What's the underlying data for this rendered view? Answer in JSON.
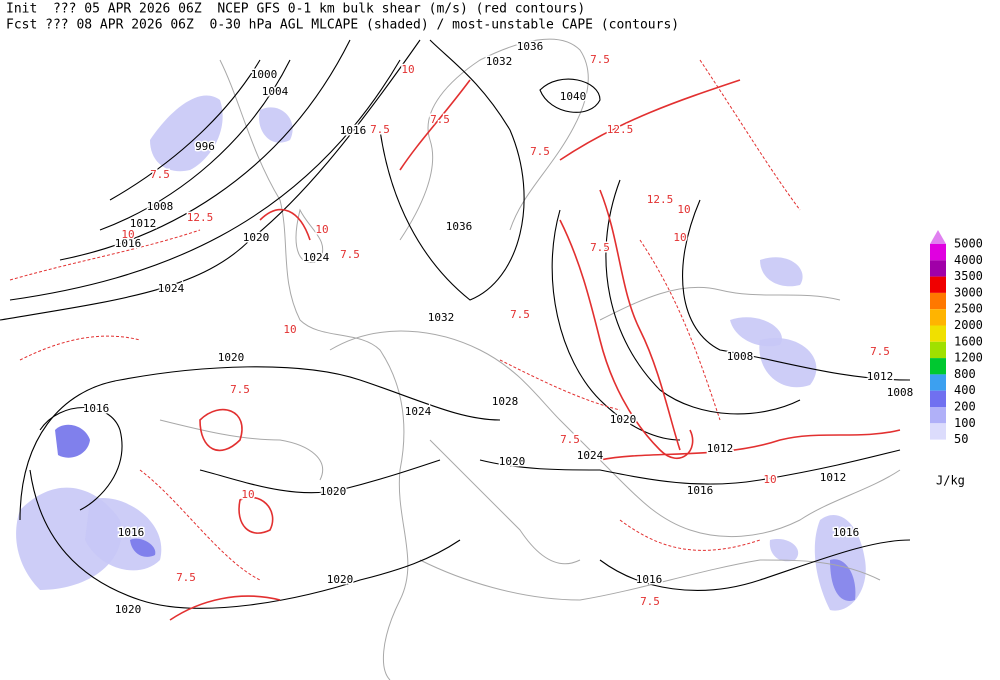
{
  "header": {
    "line1": "Init  ??? 05 APR 2026 06Z  NCEP GFS 0-1 km bulk shear (m/s) (red contours)",
    "line2": "Fcst ??? 08 APR 2026 06Z  0-30 hPa AGL MLCAPE (shaded) / most-unstable CAPE (contours)"
  },
  "isobar_labels": [
    "1000",
    "1004",
    "996",
    "1008",
    "1012",
    "1016",
    "1020",
    "1024",
    "1016",
    "1024",
    "1032",
    "1036",
    "1040",
    "1032",
    "1036",
    "1008",
    "1012",
    "1012",
    "1012",
    "1016",
    "1020",
    "1024",
    "1028",
    "1020",
    "1024",
    "1016",
    "1016",
    "1020",
    "1020",
    "1020",
    "1020",
    "1016",
    "1016",
    "1008"
  ],
  "shear_labels": [
    "7.5",
    "10",
    "12.5",
    "7.5",
    "10",
    "7.5",
    "12.5",
    "10",
    "7.5",
    "10",
    "7.5",
    "12.5",
    "7.5",
    "10",
    "7.5",
    "10",
    "7.5",
    "7.5",
    "10",
    "7.5",
    "7.5",
    "10",
    "7.5",
    "7.5"
  ],
  "legend": {
    "levels": [
      {
        "value": 5000,
        "color": "#e080f0"
      },
      {
        "value": 4000,
        "color": "#e000e0"
      },
      {
        "value": 3500,
        "color": "#a000a8"
      },
      {
        "value": 3000,
        "color": "#f00000"
      },
      {
        "value": 2500,
        "color": "#ff7800"
      },
      {
        "value": 2000,
        "color": "#ffb400"
      },
      {
        "value": 1600,
        "color": "#f0e000"
      },
      {
        "value": 1200,
        "color": "#a0e000"
      },
      {
        "value": 800,
        "color": "#00c830"
      },
      {
        "value": 400,
        "color": "#3ca0f0"
      },
      {
        "value": 200,
        "color": "#7070f0"
      },
      {
        "value": 100,
        "color": "#b0b0f8"
      },
      {
        "value": 50,
        "color": "#dcdcfc"
      }
    ],
    "unit": "J/kg"
  }
}
